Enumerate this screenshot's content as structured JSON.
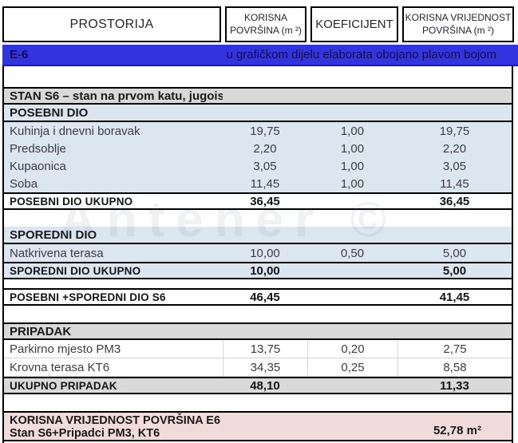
{
  "columns": [
    "PROSTORIJA",
    "KORISNA POVRŠINA (m ²)",
    "KOEFICIJENT",
    "KORISNA VRIJEDNOST POVRŠINA (m ²)"
  ],
  "banner": {
    "code": "E-6",
    "note": "u grafičkom dijelu elaborata obojano plavom bojom"
  },
  "colors": {
    "banner_blue": "#3434de",
    "light_blue": "#dce6f1",
    "grey": "#d9d9d9",
    "pink": "#f2dcdb"
  },
  "rows": [
    {
      "kind": "section-grey",
      "cells": [
        "STAN S6 – stan na prvom katu, jugoistok",
        "",
        "",
        ""
      ]
    },
    {
      "kind": "sub-blue",
      "cells": [
        "POSEBNI DIO",
        "",
        "",
        ""
      ]
    },
    {
      "kind": "data-blue",
      "cells": [
        "Kuhinja i dnevni boravak",
        "19,75",
        "1,00",
        "19,75"
      ]
    },
    {
      "kind": "data-blue",
      "cells": [
        "Predsoblje",
        "2,20",
        "1,00",
        "2,20"
      ]
    },
    {
      "kind": "data-blue",
      "cells": [
        "Kupaonica",
        "3,05",
        "1,00",
        "3,05"
      ]
    },
    {
      "kind": "data-blue",
      "cells": [
        "Soba",
        "11,45",
        "1,00",
        "11,45"
      ]
    },
    {
      "kind": "total-white",
      "cells": [
        "POSEBNI DIO UKUPNO",
        "36,45",
        "",
        "36,45"
      ]
    },
    {
      "kind": "blank",
      "cells": [
        "",
        "",
        "",
        ""
      ]
    },
    {
      "kind": "sub-blue",
      "cells": [
        "SPOREDNI DIO",
        "",
        "",
        ""
      ]
    },
    {
      "kind": "data-blue",
      "cells": [
        "Natkrivena terasa",
        "10,00",
        "0,50",
        "5,00"
      ]
    },
    {
      "kind": "total-blue",
      "cells": [
        "SPOREDNI DIO UKUPNO",
        "10,00",
        "",
        "5,00"
      ]
    },
    {
      "kind": "blank-sm",
      "cells": [
        "",
        "",
        "",
        ""
      ]
    },
    {
      "kind": "total-white",
      "cells": [
        "POSEBNI +SPOREDNI DIO S6",
        "46,45",
        "",
        "41,45"
      ]
    },
    {
      "kind": "blank",
      "cells": [
        "",
        "",
        "",
        ""
      ]
    },
    {
      "kind": "section-grey",
      "cells": [
        "PRIPADAK",
        "",
        "",
        ""
      ]
    },
    {
      "kind": "data-white",
      "cells": [
        "Parkirno mjesto PM3",
        "13,75",
        "0,20",
        "2,75"
      ]
    },
    {
      "kind": "data-white",
      "cells": [
        "Krovna terasa KT6",
        "34,35",
        "0,25",
        "8,58"
      ]
    },
    {
      "kind": "total-grey",
      "cells": [
        "UKUPNO PRIPADAK",
        "48,10",
        "",
        "11,33"
      ]
    },
    {
      "kind": "blank",
      "cells": [
        "",
        "",
        "",
        ""
      ]
    }
  ],
  "summary": {
    "title": "KORISNA VRIJEDNOST POVRŠINA E6",
    "subtitle": "Stan S6+Pripadci PM3, KT6",
    "value": "52,78 m²"
  },
  "watermark": "Antener ©"
}
